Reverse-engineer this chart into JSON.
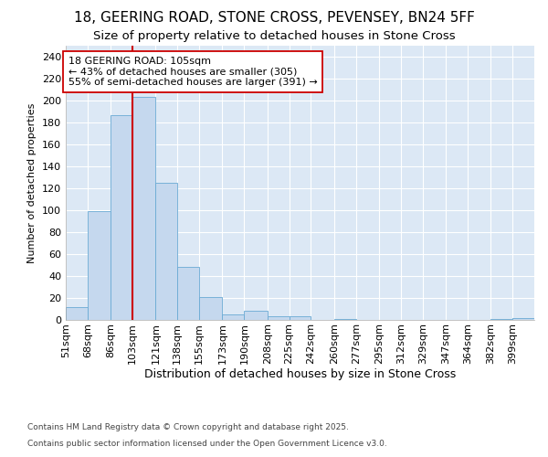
{
  "title1": "18, GEERING ROAD, STONE CROSS, PEVENSEY, BN24 5FF",
  "title2": "Size of property relative to detached houses in Stone Cross",
  "xlabel": "Distribution of detached houses by size in Stone Cross",
  "ylabel": "Number of detached properties",
  "categories": [
    "51sqm",
    "68sqm",
    "86sqm",
    "103sqm",
    "121sqm",
    "138sqm",
    "155sqm",
    "173sqm",
    "190sqm",
    "208sqm",
    "225sqm",
    "242sqm",
    "260sqm",
    "277sqm",
    "295sqm",
    "312sqm",
    "329sqm",
    "347sqm",
    "364sqm",
    "382sqm",
    "399sqm"
  ],
  "bar_values": [
    12,
    99,
    187,
    203,
    125,
    48,
    21,
    5,
    8,
    3,
    3,
    0,
    1,
    0,
    0,
    0,
    0,
    0,
    0,
    1,
    2
  ],
  "bin_edges": [
    51,
    68,
    86,
    103,
    121,
    138,
    155,
    173,
    190,
    208,
    225,
    242,
    260,
    277,
    295,
    312,
    329,
    347,
    364,
    382,
    399,
    416
  ],
  "bar_color": "#c5d8ee",
  "bar_edge_color": "#6aaad4",
  "plot_bg_color": "#dce8f5",
  "fig_bg_color": "#ffffff",
  "grid_color": "#ffffff",
  "vline_x": 103,
  "vline_color": "#cc0000",
  "annotation_line1": "18 GEERING ROAD: 105sqm",
  "annotation_line2": "← 43% of detached houses are smaller (305)",
  "annotation_line3": "55% of semi-detached houses are larger (391) →",
  "annotation_box_facecolor": "#ffffff",
  "annotation_box_edgecolor": "#cc0000",
  "ylim": [
    0,
    250
  ],
  "yticks": [
    0,
    20,
    40,
    60,
    80,
    100,
    120,
    140,
    160,
    180,
    200,
    220,
    240
  ],
  "footer1": "Contains HM Land Registry data © Crown copyright and database right 2025.",
  "footer2": "Contains public sector information licensed under the Open Government Licence v3.0.",
  "title1_fontsize": 11,
  "title2_fontsize": 9.5,
  "xlabel_fontsize": 9,
  "ylabel_fontsize": 8,
  "tick_fontsize": 8,
  "annotation_fontsize": 8,
  "footer_fontsize": 6.5
}
